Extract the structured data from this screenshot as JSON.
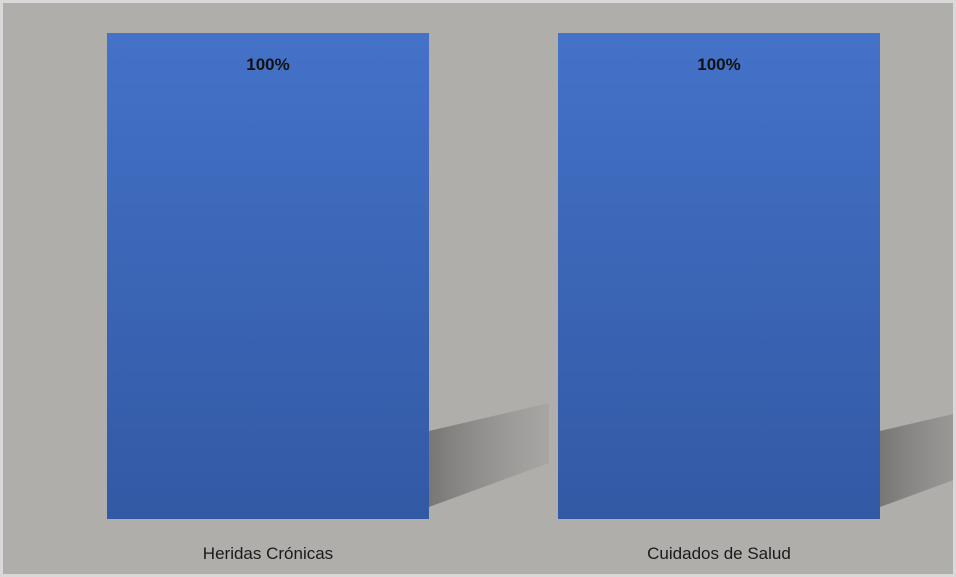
{
  "chart_data": {
    "type": "bar",
    "categories": [
      "Heridas Crónicas",
      "Cuidados de Salud"
    ],
    "series": [
      {
        "values": [
          100,
          100
        ]
      }
    ],
    "data_labels": [
      "100%",
      "100%"
    ],
    "ylim": [
      0,
      100
    ],
    "y_unit": "%",
    "grid": false,
    "legend": "none",
    "colors": {
      "bar_top": "#4472c8",
      "bar_bottom": "#3259a4",
      "plot_background": "#b0aeab",
      "frame_border": "#d9d9d9",
      "shadow": "#7f7d7b"
    }
  }
}
